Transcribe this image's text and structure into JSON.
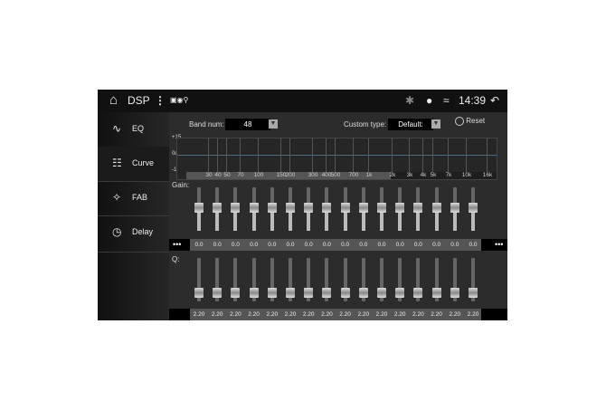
{
  "status": {
    "title": "DSP",
    "time": "14:39",
    "icons": [
      "home-icon",
      "more-vert-icon",
      "notification-icons",
      "bluetooth-icon",
      "location-icon",
      "wifi-icon",
      "back-icon"
    ]
  },
  "sidebar": {
    "items": [
      {
        "label": "EQ",
        "icon": "waveform-icon"
      },
      {
        "label": "Curve",
        "icon": "sliders-icon",
        "selected": true
      },
      {
        "label": "FAB",
        "icon": "fader-balance-icon"
      },
      {
        "label": "Delay",
        "icon": "clock-icon"
      }
    ]
  },
  "controls": {
    "band_label": "Band num:",
    "band_value": "48",
    "custom_label": "Custom type:",
    "custom_value": "Default:",
    "reset_label": "Reset"
  },
  "graph": {
    "y_labels": [
      "+15",
      "0db",
      "-15"
    ],
    "freqs": [
      "30",
      "40",
      "50",
      "70",
      "100",
      "150",
      "200",
      "300",
      "400",
      "500",
      "700",
      "1k",
      "2k",
      "3k",
      "4k",
      "5k",
      "7k",
      "10k",
      "16k"
    ]
  },
  "gain": {
    "label": "Gain:",
    "values": [
      "0.0",
      "0.0",
      "0.0",
      "0.0",
      "0.0",
      "0.0",
      "0.0",
      "0.0",
      "0.0",
      "0.0",
      "0.0",
      "0.0",
      "0.0",
      "0.0",
      "0.0",
      "0.0"
    ],
    "more": "•••"
  },
  "q": {
    "label": "Q:",
    "values": [
      "2.20",
      "2.20",
      "2.20",
      "2.20",
      "2.20",
      "2.20",
      "2.20",
      "2.20",
      "2.20",
      "2.20",
      "2.20",
      "2.20",
      "2.20",
      "2.20",
      "2.20",
      "2.20"
    ]
  }
}
